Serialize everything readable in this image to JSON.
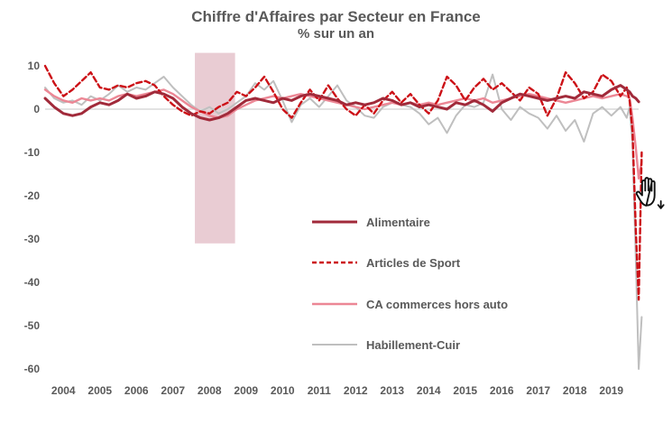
{
  "title": "Chiffre d'Affaires par Secteur en France",
  "subtitle": "% sur un an",
  "cursor": {
    "icon": "hand-pan-cursor-with-down-arrow"
  },
  "colors": {
    "text": "#595959",
    "zero_gridline": "#d9d9d9",
    "recession_band": "#e9ccd3",
    "alimentaire": "#a12a3a",
    "articles_de_sport": "#cc1117",
    "ca_commerces_hors_auto": "#ec8795",
    "habillement_cuir": "#bfbfbf"
  },
  "chart_data": {
    "type": "line",
    "title": "Chiffre d'Affaires par Secteur en France",
    "subtitle": "% sur un an",
    "xlabel": "",
    "ylabel": "% sur un an",
    "grid": "zero-line-only",
    "legend_position": "inside-lower-center",
    "ylim": [
      -62,
      13
    ],
    "y_ticks": [
      "10",
      "0",
      "-10",
      "-20",
      "-30",
      "-40",
      "-50",
      "-60"
    ],
    "x_ticks": [
      "2004",
      "2005",
      "2006",
      "2007",
      "2008",
      "2009",
      "2010",
      "2011",
      "2012",
      "2013",
      "2014",
      "2015",
      "2016",
      "2017",
      "2018",
      "2019"
    ],
    "recession_band": {
      "x0": 2008.1,
      "x1": 2009.2,
      "y_top": 13,
      "y_bottom": -31,
      "color": "#e9ccd3"
    },
    "x": [
      2004,
      2004.25,
      2004.5,
      2004.75,
      2005,
      2005.25,
      2005.5,
      2005.75,
      2006,
      2006.25,
      2006.5,
      2006.75,
      2007,
      2007.25,
      2007.5,
      2007.75,
      2008,
      2008.25,
      2008.5,
      2008.75,
      2009,
      2009.25,
      2009.5,
      2009.75,
      2010,
      2010.25,
      2010.5,
      2010.75,
      2011,
      2011.25,
      2011.5,
      2011.75,
      2012,
      2012.25,
      2012.5,
      2012.75,
      2013,
      2013.25,
      2013.5,
      2013.75,
      2014,
      2014.25,
      2014.5,
      2014.75,
      2015,
      2015.25,
      2015.5,
      2015.75,
      2016,
      2016.25,
      2016.5,
      2016.75,
      2017,
      2017.25,
      2017.5,
      2017.75,
      2018,
      2018.25,
      2018.5,
      2018.75,
      2019,
      2019.25,
      2019.5,
      2019.75,
      2019.92,
      2020,
      2020.08,
      2020.17,
      2020.25,
      2020.33
    ],
    "series": [
      {
        "name": "Alimentaire",
        "color": "#a12a3a",
        "style": "solid",
        "width": 3,
        "values": [
          2.5,
          0.5,
          -1,
          -1.5,
          -1,
          0.5,
          1.5,
          1,
          2,
          3.5,
          2.5,
          3,
          4,
          3.5,
          2.5,
          0.5,
          -1,
          -2,
          -2.5,
          -2,
          -1,
          0.5,
          2,
          2.5,
          2,
          1.5,
          2.5,
          2,
          3,
          3.5,
          3,
          2.5,
          2,
          1,
          1.5,
          1,
          1.5,
          2.5,
          2,
          1,
          1.5,
          0.5,
          1,
          0.5,
          0,
          1.5,
          1,
          2,
          1,
          -0.5,
          1.5,
          2.5,
          3.5,
          3,
          2.5,
          2,
          2.5,
          3,
          2.5,
          4,
          3.5,
          3,
          4.5,
          5.5,
          4.5,
          4,
          3,
          2.5,
          1.7,
          null
        ]
      },
      {
        "name": "Articles de Sport",
        "color": "#cc1117",
        "style": "dashed",
        "width": 2.4,
        "values": [
          10,
          6,
          3,
          4.5,
          6.5,
          8.5,
          5,
          4.5,
          5.5,
          5,
          6,
          6.5,
          5.5,
          3,
          1,
          -0.5,
          -1.5,
          -0.5,
          -1,
          0.5,
          1.5,
          4,
          3,
          5,
          7.5,
          4,
          0,
          -2,
          1.5,
          4.5,
          2,
          5.5,
          2.5,
          0,
          -1.5,
          1,
          -1,
          2,
          4,
          1.5,
          3.5,
          1,
          -1,
          2,
          7.5,
          5.5,
          2,
          5,
          7,
          4.5,
          6,
          4,
          2,
          5,
          3.5,
          -1.5,
          2.5,
          8.5,
          6,
          2.5,
          4,
          8,
          6.5,
          3,
          5,
          2,
          -5,
          -28,
          -44,
          -10
        ]
      },
      {
        "name": "CA commerces hors auto",
        "color": "#ec8795",
        "style": "solid",
        "width": 2.4,
        "values": [
          4.5,
          3,
          2,
          1.5,
          2.5,
          2,
          2.5,
          2,
          3,
          3.5,
          3,
          3.5,
          4,
          4.5,
          3.5,
          2,
          0.5,
          -0.5,
          -1.5,
          -2,
          -1.5,
          0,
          1,
          2,
          2.5,
          3,
          2.5,
          3,
          3.5,
          3,
          2.5,
          2,
          1.5,
          1,
          0.5,
          0,
          0.5,
          1,
          1.5,
          1,
          1.5,
          1,
          1.5,
          1,
          1.5,
          2,
          2.5,
          2,
          2.5,
          1.5,
          2,
          2.5,
          3,
          3.5,
          3,
          2.5,
          2,
          1.5,
          2,
          2.5,
          3,
          2.5,
          3,
          3.5,
          3,
          2.5,
          -2,
          -9,
          -16,
          -12
        ]
      },
      {
        "name": "Habillement-Cuir",
        "color": "#bfbfbf",
        "style": "solid",
        "width": 2,
        "values": [
          5,
          2.5,
          1.5,
          2,
          1,
          3,
          2,
          3.5,
          5.5,
          4,
          5,
          4.5,
          6,
          7.5,
          5,
          3,
          1,
          -0.5,
          0.5,
          -1,
          0,
          1.5,
          3,
          6,
          4.5,
          6.5,
          2,
          -3,
          1,
          2.5,
          0.5,
          3,
          5.5,
          2,
          0.5,
          -1.5,
          -2,
          0.5,
          1.5,
          1,
          0.5,
          -1,
          -3.5,
          -2,
          -5.5,
          -1.5,
          1,
          0.5,
          1.5,
          8,
          0,
          -2.5,
          0.5,
          -1,
          -2,
          -4.5,
          -1.5,
          -5,
          -2.5,
          -7.5,
          -1,
          0.5,
          -1.5,
          0.5,
          -2,
          0.5,
          -8,
          -35,
          -60,
          -48
        ]
      }
    ]
  }
}
